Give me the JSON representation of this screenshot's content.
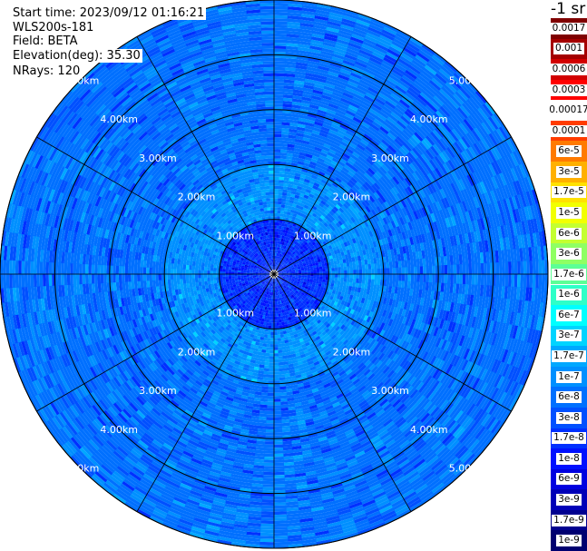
{
  "header": {
    "start_time": "Start time: 2023/09/12 01:16:21",
    "instrument": "WLS200s-181",
    "field": "Field: BETA",
    "elevation": "Elevation(deg): 35.30",
    "nrays": "NRays: 120"
  },
  "chart_data": {
    "type": "heatmap",
    "projection": "polar-ppi",
    "field": "BETA",
    "unit_label": "-1 sr",
    "nrays": 120,
    "elevation_deg": 35.3,
    "max_range_km": 5.0,
    "range_rings_km": [
      1,
      2,
      3,
      4,
      5
    ],
    "ring_labels": [
      "1.00km",
      "2.00km",
      "3.00km",
      "4.00km",
      "5.00km"
    ],
    "azimuth_spokes_deg": [
      0,
      30,
      60,
      90,
      120,
      150,
      180,
      210,
      240,
      270,
      300,
      330
    ],
    "typical_value_by_range": [
      {
        "range_km": [
          0,
          1
        ],
        "value": "1.7e-8"
      },
      {
        "range_km": [
          1,
          2
        ],
        "value": "1e-7"
      },
      {
        "range_km": [
          2,
          3
        ],
        "value": "6e-8"
      },
      {
        "range_km": [
          3,
          5
        ],
        "value": "6e-8"
      }
    ],
    "colorbar": {
      "labels": [
        "0.0017",
        "0.001",
        "0.0006",
        "0.0003",
        "0.00017",
        "0.0001",
        "6e-5",
        "3e-5",
        "1.7e-5",
        "1e-5",
        "6e-6",
        "3e-6",
        "1.7e-6",
        "1e-6",
        "6e-7",
        "3e-7",
        "1.7e-7",
        "1e-7",
        "6e-8",
        "3e-8",
        "1.7e-8",
        "1e-8",
        "6e-9",
        "3e-9",
        "1.7e-9",
        "1e-9"
      ],
      "colors": [
        "#800000",
        "#a50000",
        "#d20000",
        "#ff0000",
        "#ffffff",
        "#ff3c00",
        "#ff7a00",
        "#ffb000",
        "#ffe100",
        "#f2ff00",
        "#c4ff30",
        "#8fff63",
        "#5cff96",
        "#2effc8",
        "#00ffff",
        "#00d4ff",
        "#00a8ff",
        "#0090ff",
        "#0070ff",
        "#0050ff",
        "#0030ff",
        "#0010ff",
        "#0000e0",
        "#0000b8",
        "#000090",
        "#000070"
      ]
    }
  }
}
